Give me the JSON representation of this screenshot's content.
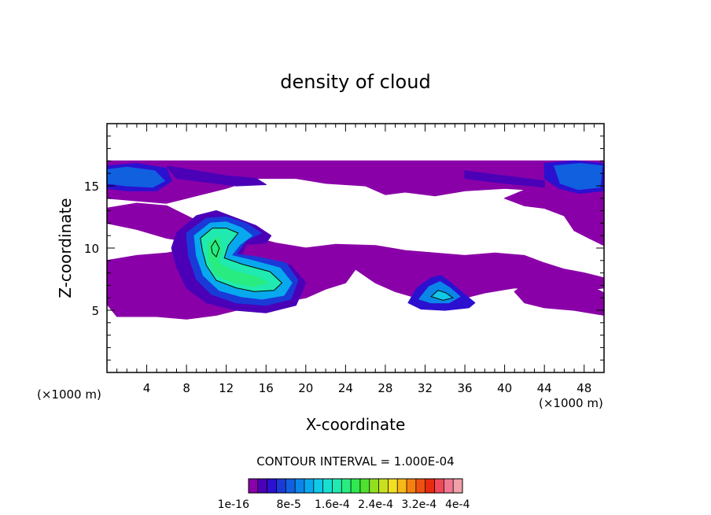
{
  "chart_data": {
    "type": "heatmap",
    "title": "density of cloud",
    "xlabel": "X-coordinate",
    "ylabel": "Z-coordinate",
    "x_unit_left": "(×1000 m)",
    "x_unit_right": "(×1000 m)",
    "xlim": [
      0,
      50
    ],
    "ylim": [
      0,
      20
    ],
    "xticks": [
      4,
      8,
      12,
      16,
      20,
      24,
      28,
      32,
      36,
      40,
      44,
      48
    ],
    "yticks": [
      5,
      10,
      15
    ],
    "contour_interval_text": "CONTOUR INTERVAL = 1.000E-04",
    "colorbar": {
      "labels": [
        "1e-16",
        "8e-5",
        "1.6e-4",
        "2.4e-4",
        "3.2e-4",
        "4e-4"
      ],
      "colors": [
        "#8a00a8",
        "#4b00b8",
        "#2c10d0",
        "#1a3ad8",
        "#1060e0",
        "#0a86e8",
        "#08a8ee",
        "#10c8e8",
        "#18e0d0",
        "#20eab0",
        "#28ec80",
        "#30e850",
        "#50e030",
        "#90e020",
        "#c8e020",
        "#f0e020",
        "#f8b818",
        "#f88010",
        "#f05010",
        "#e82a10",
        "#f04858",
        "#f07890",
        "#f0a0a8"
      ]
    },
    "regions": [
      {
        "name": "top-band-low",
        "level": 0,
        "poly": [
          [
            0,
            17
          ],
          [
            50,
            17
          ],
          [
            50,
            15.4
          ],
          [
            47,
            15
          ],
          [
            44,
            14.6
          ],
          [
            40,
            14.8
          ],
          [
            36,
            14.6
          ],
          [
            33,
            14.2
          ],
          [
            30,
            14.5
          ],
          [
            28,
            14.3
          ],
          [
            26,
            15
          ],
          [
            22,
            15.2
          ],
          [
            19,
            15.6
          ],
          [
            15,
            15.6
          ],
          [
            12,
            14.8
          ],
          [
            9,
            14.2
          ],
          [
            6,
            13.6
          ],
          [
            3,
            13.8
          ],
          [
            0,
            14
          ]
        ]
      },
      {
        "name": "top-band-right-drop",
        "level": 0,
        "poly": [
          [
            43,
            15
          ],
          [
            50,
            15
          ],
          [
            50,
            10.2
          ],
          [
            48.5,
            10.8
          ],
          [
            47,
            11.4
          ],
          [
            46,
            12.6
          ],
          [
            44,
            13.2
          ],
          [
            42,
            13.4
          ],
          [
            40,
            14
          ]
        ]
      },
      {
        "name": "upper-left-blob",
        "level": 0,
        "poly": [
          [
            0,
            13.2
          ],
          [
            3,
            13.6
          ],
          [
            6,
            13.4
          ],
          [
            9,
            12.2
          ],
          [
            10,
            11
          ],
          [
            9,
            10.4
          ],
          [
            6,
            10.8
          ],
          [
            3,
            11.5
          ],
          [
            0,
            12
          ]
        ]
      },
      {
        "name": "mid-left-band",
        "level": 0,
        "poly": [
          [
            0,
            9
          ],
          [
            3,
            9.4
          ],
          [
            6,
            9.6
          ],
          [
            9,
            10
          ],
          [
            12,
            11
          ],
          [
            14,
            11
          ],
          [
            17,
            10.4
          ],
          [
            20,
            10
          ],
          [
            22,
            9.4
          ],
          [
            24,
            9.2
          ],
          [
            25,
            8.3
          ],
          [
            24,
            7.2
          ],
          [
            22,
            6.7
          ],
          [
            20,
            6
          ],
          [
            17,
            5.6
          ],
          [
            15,
            5.3
          ],
          [
            13,
            5
          ],
          [
            11,
            4.6
          ],
          [
            8,
            4.3
          ],
          [
            5,
            4.5
          ],
          [
            1,
            4.5
          ],
          [
            0,
            5.5
          ]
        ]
      },
      {
        "name": "mid-center-band",
        "level": 0,
        "poly": [
          [
            20,
            10
          ],
          [
            23,
            10.3
          ],
          [
            27,
            10.2
          ],
          [
            30,
            9.8
          ],
          [
            33,
            9.6
          ],
          [
            36,
            9.4
          ],
          [
            39,
            9.6
          ],
          [
            42,
            9.4
          ],
          [
            44,
            8.8
          ],
          [
            46,
            8.3
          ],
          [
            48,
            8
          ],
          [
            50,
            7.6
          ],
          [
            50,
            6.8
          ],
          [
            47,
            6.5
          ],
          [
            44,
            6.6
          ],
          [
            41,
            6.8
          ],
          [
            38,
            6.4
          ],
          [
            35,
            5.8
          ],
          [
            32,
            5.8
          ],
          [
            29,
            6.5
          ],
          [
            27,
            7.2
          ],
          [
            25,
            8.3
          ]
        ]
      },
      {
        "name": "lower-right-blob",
        "level": 0,
        "poly": [
          [
            43,
            7.6
          ],
          [
            46,
            7.2
          ],
          [
            49,
            6.8
          ],
          [
            50,
            6.4
          ],
          [
            50,
            4.6
          ],
          [
            47,
            5
          ],
          [
            44,
            5.2
          ],
          [
            42,
            5.6
          ],
          [
            41,
            6.5
          ]
        ]
      },
      {
        "name": "central-lobe-level1",
        "level": 1,
        "poly": [
          [
            7,
            11.2
          ],
          [
            9,
            12.6
          ],
          [
            11,
            13
          ],
          [
            13,
            12.4
          ],
          [
            15,
            11.8
          ],
          [
            16.5,
            11
          ],
          [
            16,
            10.4
          ],
          [
            14,
            10.3
          ],
          [
            13.5,
            9.4
          ],
          [
            16,
            9
          ],
          [
            18.5,
            8.6
          ],
          [
            20,
            7.2
          ],
          [
            19,
            5.4
          ],
          [
            16,
            4.8
          ],
          [
            13,
            5
          ],
          [
            10,
            5.6
          ],
          [
            8,
            6.8
          ],
          [
            7,
            8.5
          ],
          [
            6.5,
            10
          ]
        ]
      },
      {
        "name": "central-lobe-level2",
        "level": 3,
        "poly": [
          [
            8,
            11.2
          ],
          [
            10,
            12.4
          ],
          [
            12,
            12.5
          ],
          [
            14,
            12
          ],
          [
            15.5,
            11.2
          ],
          [
            14,
            10.6
          ],
          [
            13,
            9.5
          ],
          [
            15,
            9.3
          ],
          [
            18,
            8.8
          ],
          [
            19.2,
            7.4
          ],
          [
            18.5,
            5.9
          ],
          [
            16,
            5.4
          ],
          [
            13,
            5.6
          ],
          [
            10.5,
            6.3
          ],
          [
            9,
            7.5
          ],
          [
            8.2,
            9.4
          ]
        ]
      },
      {
        "name": "central-lobe-level3",
        "level": 6,
        "poly": [
          [
            8.8,
            11
          ],
          [
            10.4,
            12
          ],
          [
            12,
            12.1
          ],
          [
            13.6,
            11.6
          ],
          [
            14.6,
            11
          ],
          [
            13.4,
            10.3
          ],
          [
            12.5,
            9.4
          ],
          [
            14.6,
            9
          ],
          [
            17.4,
            8.4
          ],
          [
            18.6,
            7.2
          ],
          [
            17.8,
            6.2
          ],
          [
            15.6,
            5.9
          ],
          [
            13.5,
            6.1
          ],
          [
            11.3,
            6.6
          ],
          [
            9.7,
            7.8
          ],
          [
            9,
            9.4
          ]
        ]
      },
      {
        "name": "central-lobe-level4",
        "level": 9,
        "poly": [
          [
            9.4,
            10.8
          ],
          [
            10.6,
            11.6
          ],
          [
            12,
            11.6
          ],
          [
            13.2,
            11.2
          ],
          [
            12.2,
            10.2
          ],
          [
            11.8,
            9.2
          ],
          [
            13.6,
            8.7
          ],
          [
            16.4,
            8.1
          ],
          [
            17.6,
            7.2
          ],
          [
            16.8,
            6.6
          ],
          [
            14.8,
            6.5
          ],
          [
            13,
            6.8
          ],
          [
            11,
            7.4
          ],
          [
            10,
            8.6
          ],
          [
            9.6,
            9.8
          ]
        ]
      },
      {
        "name": "central-lobe-level5",
        "level": 10,
        "poly": [
          [
            10.2,
            10.4
          ],
          [
            11.2,
            10.9
          ],
          [
            11.6,
            9.8
          ],
          [
            11.2,
            8.8
          ],
          [
            12.6,
            8.2
          ],
          [
            15,
            7.7
          ],
          [
            16.2,
            7.2
          ],
          [
            14.8,
            6.9
          ],
          [
            12.8,
            7.2
          ],
          [
            10.8,
            7.9
          ],
          [
            10.2,
            9.2
          ]
        ]
      },
      {
        "name": "right-mound-level1",
        "level": 2,
        "poly": [
          [
            30.3,
            5.6
          ],
          [
            31.2,
            6.8
          ],
          [
            32.6,
            7.6
          ],
          [
            33.6,
            7.8
          ],
          [
            34.6,
            7.2
          ],
          [
            35.8,
            6.4
          ],
          [
            37,
            5.6
          ],
          [
            36.4,
            5.2
          ],
          [
            34,
            5
          ],
          [
            31.6,
            5.1
          ]
        ]
      },
      {
        "name": "right-mound-level2",
        "level": 5,
        "poly": [
          [
            31.4,
            5.9
          ],
          [
            32.4,
            6.9
          ],
          [
            33.5,
            7.3
          ],
          [
            34.5,
            6.8
          ],
          [
            35.5,
            6.1
          ],
          [
            34.4,
            5.6
          ],
          [
            32.6,
            5.6
          ]
        ]
      },
      {
        "name": "right-mound-level3",
        "level": 7,
        "poly": [
          [
            32.6,
            6.1
          ],
          [
            33.3,
            6.6
          ],
          [
            34.1,
            6.4
          ],
          [
            34.8,
            6
          ],
          [
            33.8,
            5.8
          ]
        ]
      },
      {
        "name": "top-left-dense-low",
        "level": 2,
        "poly": [
          [
            0,
            16.6
          ],
          [
            3,
            16.8
          ],
          [
            6,
            16.4
          ],
          [
            6.5,
            15.4
          ],
          [
            5,
            14.6
          ],
          [
            2,
            14.6
          ],
          [
            0,
            14.8
          ]
        ]
      },
      {
        "name": "top-left-dense-mid",
        "level": 4,
        "poly": [
          [
            0,
            16.3
          ],
          [
            2,
            16.5
          ],
          [
            4.8,
            16.2
          ],
          [
            5.8,
            15.4
          ],
          [
            4.6,
            14.9
          ],
          [
            2,
            15
          ],
          [
            0,
            15.2
          ]
        ]
      },
      {
        "name": "top-left-streak",
        "level": 1,
        "poly": [
          [
            6,
            16.6
          ],
          [
            9,
            16.2
          ],
          [
            12,
            15.8
          ],
          [
            15,
            15.6
          ],
          [
            16,
            15.1
          ],
          [
            13,
            15
          ],
          [
            10,
            15.3
          ],
          [
            7,
            15.6
          ]
        ]
      },
      {
        "name": "top-right-dense-low",
        "level": 2,
        "poly": [
          [
            44,
            16.8
          ],
          [
            47,
            17
          ],
          [
            50,
            16.8
          ],
          [
            50,
            14.6
          ],
          [
            47.5,
            14.4
          ],
          [
            45.5,
            14.8
          ],
          [
            44,
            15.6
          ]
        ]
      },
      {
        "name": "top-right-dense-mid",
        "level": 4,
        "poly": [
          [
            45,
            16.6
          ],
          [
            47.6,
            16.8
          ],
          [
            49.8,
            16.6
          ],
          [
            49.6,
            14.9
          ],
          [
            47.4,
            14.7
          ],
          [
            45.6,
            15.2
          ]
        ]
      },
      {
        "name": "top-right-streak",
        "level": 1,
        "poly": [
          [
            36,
            16.2
          ],
          [
            40,
            15.8
          ],
          [
            44,
            15.4
          ],
          [
            44,
            14.9
          ],
          [
            40,
            15.2
          ],
          [
            36,
            15.6
          ]
        ]
      }
    ],
    "contours": [
      {
        "name": "contour-central-outer",
        "poly": [
          [
            9.4,
            10.8
          ],
          [
            10.6,
            11.6
          ],
          [
            12,
            11.6
          ],
          [
            13.2,
            11.2
          ],
          [
            12.2,
            10.2
          ],
          [
            11.8,
            9.2
          ],
          [
            13.6,
            8.7
          ],
          [
            16.4,
            8.1
          ],
          [
            17.6,
            7.2
          ],
          [
            16.8,
            6.6
          ],
          [
            14.8,
            6.5
          ],
          [
            13,
            6.8
          ],
          [
            11,
            7.4
          ],
          [
            10,
            8.6
          ],
          [
            9.6,
            9.8
          ]
        ]
      },
      {
        "name": "contour-central-peak",
        "poly": [
          [
            10.5,
            10.1
          ],
          [
            10.9,
            10.6
          ],
          [
            11.3,
            10
          ],
          [
            11,
            9.3
          ],
          [
            10.6,
            9.6
          ]
        ]
      },
      {
        "name": "contour-right-mound",
        "poly": [
          [
            32.6,
            6.1
          ],
          [
            33.3,
            6.6
          ],
          [
            34.1,
            6.4
          ],
          [
            34.8,
            6
          ],
          [
            33.8,
            5.8
          ]
        ]
      }
    ]
  }
}
